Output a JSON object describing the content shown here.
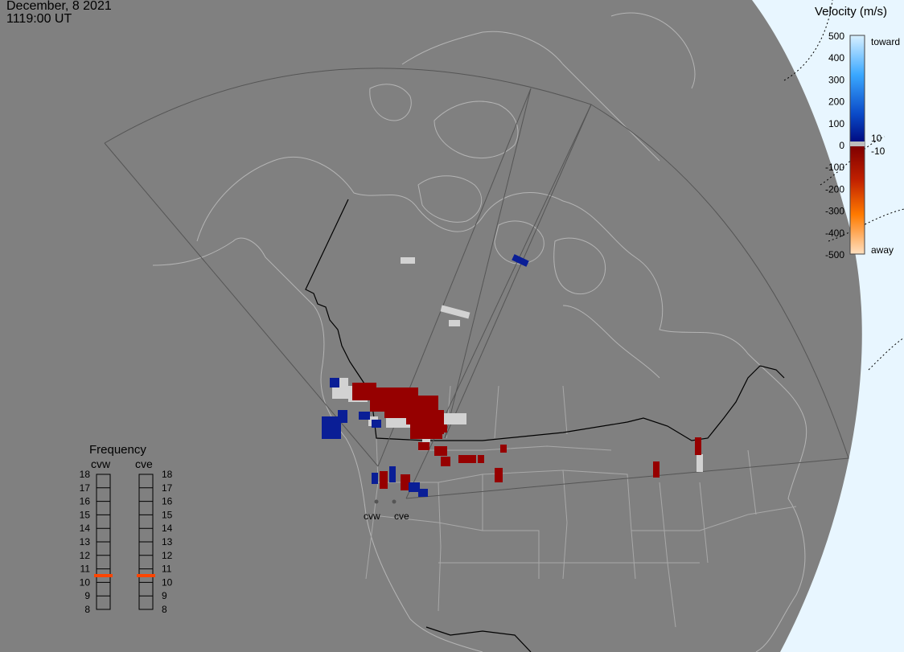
{
  "header": {
    "date": "December, 8 2021",
    "time": "1119:00 UT"
  },
  "velocity_scale": {
    "title": "Velocity (m/s)",
    "tick_labels": [
      "500",
      "400",
      "300",
      "200",
      "100",
      "0",
      "-100",
      "-200",
      "-300",
      "-400",
      "-500"
    ],
    "toward_label": "toward",
    "away_label": "away",
    "threshold_pos": "10",
    "threshold_neg": "-10"
  },
  "frequency_panel": {
    "title": "Frequency",
    "radars": [
      "cvw",
      "cve"
    ],
    "levels": [
      "18",
      "17",
      "16",
      "15",
      "14",
      "13",
      "12",
      "11",
      "10",
      "9",
      "8"
    ],
    "active_frequency": [
      10.5,
      10.5
    ]
  },
  "radar_labels": [
    "cvw",
    "cve"
  ],
  "colors": {
    "background": "#808080",
    "outer_space": "#e8f6ff",
    "map_line": "#b4b4b4",
    "border_line": "#000000",
    "fov_line": "#555555",
    "toward_strong": "#c8ecff",
    "toward_mid": "#1e90ff",
    "toward_weak": "#0a1e96",
    "ground_scatter": "#d2d2d2",
    "away_weak": "#960000",
    "away_mid": "#ff6a00",
    "away_strong": "#ffdcb4",
    "freq_marker": "#ff4500"
  }
}
